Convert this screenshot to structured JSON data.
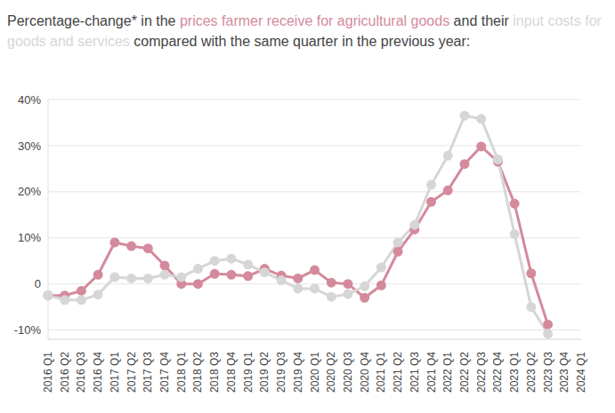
{
  "chart_data": {
    "type": "line",
    "title": "Percentage-change* in the prices farmer receive for agricultural goods and their input costs for goods and services compared with the same quarter in the previous year:",
    "categories": [
      "2016 Q1",
      "2016 Q2",
      "2016 Q3",
      "2016 Q4",
      "2017 Q1",
      "2017 Q2",
      "2017 Q3",
      "2017 Q4",
      "2018 Q1",
      "2018 Q2",
      "2018 Q3",
      "2018 Q4",
      "2019 Q1",
      "2019 Q2",
      "2019 Q3",
      "2019 Q4",
      "2020 Q1",
      "2020 Q2",
      "2020 Q3",
      "2020 Q4",
      "2021 Q1",
      "2021 Q2",
      "2021 Q3",
      "2021 Q4",
      "2022 Q1",
      "2022 Q2",
      "2022 Q3",
      "2022 Q4",
      "2023 Q1",
      "2023 Q2",
      "2023 Q3",
      "2023 Q4",
      "2024 Q1"
    ],
    "series": [
      {
        "name": "prices farmer receive for agricultural goods",
        "color": "#d48a9c",
        "marker": "circle",
        "values": [
          -2.5,
          -2.5,
          -1.5,
          2,
          9,
          8.2,
          7.7,
          4,
          0,
          0,
          2.2,
          2,
          1.7,
          3.3,
          1.8,
          1.2,
          3,
          0.3,
          0,
          -3,
          -0.3,
          7,
          11.8,
          17.8,
          20.3,
          26,
          29.8,
          26.5,
          17.4,
          2.3,
          -8.8,
          null,
          null
        ]
      },
      {
        "name": "input costs for goods and services",
        "color": "#d6d6d6",
        "marker": "circle",
        "values": [
          -2.5,
          -3.5,
          -3.5,
          -2.3,
          1.5,
          1.2,
          1.2,
          2,
          1.5,
          3.3,
          5,
          5.5,
          4.2,
          2.5,
          0.8,
          -1,
          -1,
          -2.8,
          -2.2,
          -0.5,
          3.6,
          9,
          12.8,
          21.5,
          27.8,
          36.5,
          35.8,
          27,
          10.8,
          -5,
          -10.8,
          null,
          null
        ]
      }
    ],
    "ylim": [
      -12,
      40
    ],
    "yticks": [
      {
        "value": -10,
        "label": "-10%"
      },
      0,
      {
        "value": 10,
        "label": "10%"
      },
      {
        "value": 20,
        "label": "20%"
      },
      {
        "value": 30,
        "label": "30%"
      },
      {
        "value": 40,
        "label": "40%"
      }
    ],
    "grid": true
  }
}
